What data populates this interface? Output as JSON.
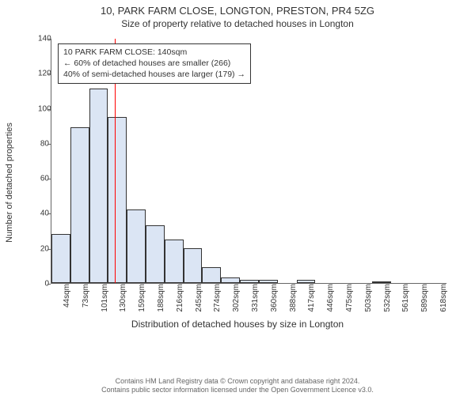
{
  "title": "10, PARK FARM CLOSE, LONGTON, PRESTON, PR4 5ZG",
  "subtitle": "Size of property relative to detached houses in Longton",
  "ylabel": "Number of detached properties",
  "xlabel": "Distribution of detached houses by size in Longton",
  "chart": {
    "type": "histogram",
    "ylim": [
      0,
      140
    ],
    "ytick_step": 20,
    "yticks": [
      0,
      20,
      40,
      60,
      80,
      100,
      120,
      140
    ],
    "bar_color": "#dbe5f4",
    "bar_border": "#333333",
    "background_color": "#ffffff",
    "axis_color": "#666666",
    "label_fontsize": 11,
    "tick_fontsize": 10,
    "categories": [
      "44sqm",
      "73sqm",
      "101sqm",
      "130sqm",
      "159sqm",
      "188sqm",
      "216sqm",
      "245sqm",
      "274sqm",
      "302sqm",
      "331sqm",
      "360sqm",
      "388sqm",
      "417sqm",
      "446sqm",
      "475sqm",
      "503sqm",
      "532sqm",
      "561sqm",
      "589sqm",
      "618sqm"
    ],
    "values": [
      28,
      89,
      111,
      95,
      42,
      33,
      25,
      20,
      9,
      3,
      2,
      2,
      0,
      2,
      0,
      0,
      0,
      1,
      0,
      0,
      0
    ],
    "marker": {
      "color": "#ff0000",
      "category_index_after": 3,
      "label": "140sqm"
    }
  },
  "annotation": {
    "line1": "10 PARK FARM CLOSE: 140sqm",
    "line2": "← 60% of detached houses are smaller (266)",
    "line3": "40% of semi-detached houses are larger (179) →",
    "border_color": "#333333",
    "bg_color": "#ffffff"
  },
  "footer": {
    "line1": "Contains HM Land Registry data © Crown copyright and database right 2024.",
    "line2": "Contains public sector information licensed under the Open Government Licence v3.0."
  }
}
